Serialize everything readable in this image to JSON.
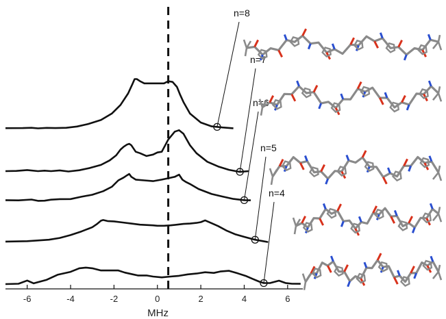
{
  "chart_data": {
    "type": "line",
    "xlabel": "MHz",
    "xlim": [
      -7,
      6.7
    ],
    "xticks": [
      -6,
      -4,
      -2,
      0,
      2,
      4,
      6
    ],
    "xtick_labels": [
      "-6",
      "-4",
      "-2",
      "0",
      "2",
      "4",
      "6"
    ],
    "reference_line_x": 0.5,
    "reference_line_style": "dashed",
    "grid": false,
    "series": [
      {
        "name": "n=8",
        "marker_x": 2.75,
        "x": [
          -7,
          -6.2,
          -5.8,
          -5.5,
          -5.1,
          -4.7,
          -4.2,
          -3.7,
          -3.2,
          -2.6,
          -2.1,
          -1.7,
          -1.35,
          -1.15,
          -1.05,
          -0.95,
          -0.8,
          -0.6,
          -0.3,
          0,
          0.3,
          0.5,
          0.7,
          0.9,
          1.05,
          1.2,
          1.5,
          2,
          2.5,
          3,
          3.5
        ],
        "y": [
          1.7,
          1.8,
          2.2,
          1.4,
          2.1,
          1.8,
          2.2,
          4,
          7.4,
          13,
          22,
          34,
          50,
          63,
          70,
          70,
          67,
          64,
          64,
          64,
          64,
          67,
          66,
          59,
          48,
          38,
          22,
          9.5,
          4.2,
          2.7,
          1.5
        ]
      },
      {
        "name": "n=7",
        "marker_x": 3.8,
        "x": [
          -7,
          -6.5,
          -6,
          -5.5,
          -5.2,
          -4.9,
          -4.5,
          -4.1,
          -3.6,
          -3.1,
          -2.6,
          -2.2,
          -1.9,
          -1.7,
          -1.55,
          -1.4,
          -1.3,
          -1.2,
          -1,
          -0.8,
          -0.5,
          -0.2,
          0,
          0.2,
          0.5,
          0.8,
          1,
          1.2,
          1.35,
          1.5,
          1.8,
          2.3,
          2.8,
          3.3,
          3.8,
          4.2
        ],
        "y": [
          0,
          0.3,
          1.5,
          0,
          0.7,
          0,
          1,
          -0.5,
          1.2,
          4.5,
          8.7,
          15,
          22,
          30,
          34,
          37,
          38,
          36,
          27,
          25,
          21,
          23,
          26,
          27,
          44,
          55,
          57,
          52,
          44,
          36,
          25,
          13,
          6.5,
          1.8,
          -1,
          0
        ]
      },
      {
        "name": "n=6",
        "marker_x": 4,
        "x": [
          -7,
          -6.4,
          -5.8,
          -5.5,
          -5.2,
          -4.9,
          -4.5,
          -4,
          -3.5,
          -3,
          -2.5,
          -2.1,
          -1.8,
          -1.55,
          -1.4,
          -1.3,
          -1.2,
          -1,
          -0.6,
          -0.2,
          0.2,
          0.5,
          0.8,
          1,
          1.15,
          1.3,
          1.5,
          1.9,
          2.5,
          3,
          3.5,
          4,
          4.3
        ],
        "y": [
          2.5,
          2.2,
          3.3,
          1.5,
          1.7,
          3.1,
          3.9,
          4,
          7.2,
          10,
          15,
          21,
          30,
          34,
          37,
          39,
          35,
          31,
          30,
          29,
          31,
          33,
          35,
          38,
          31,
          28,
          25,
          18,
          11,
          7.5,
          4.2,
          2.5,
          2.3
        ]
      },
      {
        "name": "n=5",
        "marker_x": 4.5,
        "x": [
          -7,
          -6,
          -5,
          -4.5,
          -4,
          -3.5,
          -3,
          -2.8,
          -2.6,
          -2.5,
          -2.3,
          -2,
          -1.6,
          -1.2,
          -0.8,
          -0.5,
          -0.2,
          0,
          0.3,
          0.6,
          0.9,
          1.2,
          1.5,
          1.8,
          2,
          2.2,
          2.5,
          2.8,
          3.2,
          3.6,
          4,
          4.5,
          5.1
        ],
        "y": [
          3,
          3.5,
          5.5,
          8,
          12,
          17,
          23,
          27,
          32,
          33,
          31.5,
          31,
          29.5,
          28,
          26.5,
          26,
          25.5,
          25,
          25,
          25.5,
          26.5,
          27.5,
          28,
          29,
          30,
          32.5,
          28.5,
          24.5,
          18,
          13,
          9.5,
          5.5,
          2.3
        ]
      },
      {
        "name": "n=4",
        "marker_x": 4.9,
        "x": [
          -7,
          -6.4,
          -6,
          -5.7,
          -5.1,
          -4.6,
          -4,
          -3.6,
          -3.3,
          -3,
          -2.6,
          -2.2,
          -1.8,
          -1.5,
          -1.2,
          -0.9,
          -0.5,
          -0.2,
          0.2,
          0.6,
          1,
          1.4,
          1.8,
          2.2,
          2.6,
          2.9,
          3.3,
          3.7,
          4.1,
          4.4,
          4.7,
          4.9,
          5.2,
          5.6,
          5.9,
          6.2,
          6.6
        ],
        "y": [
          0,
          0.5,
          5,
          1,
          6,
          13,
          17,
          22,
          23,
          22,
          19,
          19,
          19,
          16,
          14,
          12,
          12,
          10.5,
          9.3,
          10.5,
          11.5,
          13.5,
          14.7,
          16.5,
          15.5,
          17.5,
          18.5,
          15,
          11,
          7,
          3.3,
          1.4,
          1.5,
          4.8,
          1.5,
          0.5,
          0.4
        ]
      }
    ]
  },
  "structures": [
    {
      "id": "octamer",
      "color_carbon": "#8a8a8a",
      "color_n": "#2a4fd0",
      "color_o": "#d8321c"
    },
    {
      "id": "heptamer",
      "color_carbon": "#8a8a8a",
      "color_n": "#2a4fd0",
      "color_o": "#d8321c"
    },
    {
      "id": "hexamer",
      "color_carbon": "#8a8a8a",
      "color_n": "#2a4fd0",
      "color_o": "#d8321c"
    },
    {
      "id": "pentamer",
      "color_carbon": "#8a8a8a",
      "color_n": "#2a4fd0",
      "color_o": "#d8321c"
    },
    {
      "id": "tetramer",
      "color_carbon": "#8a8a8a",
      "color_n": "#2a4fd0",
      "color_o": "#d8321c"
    }
  ]
}
